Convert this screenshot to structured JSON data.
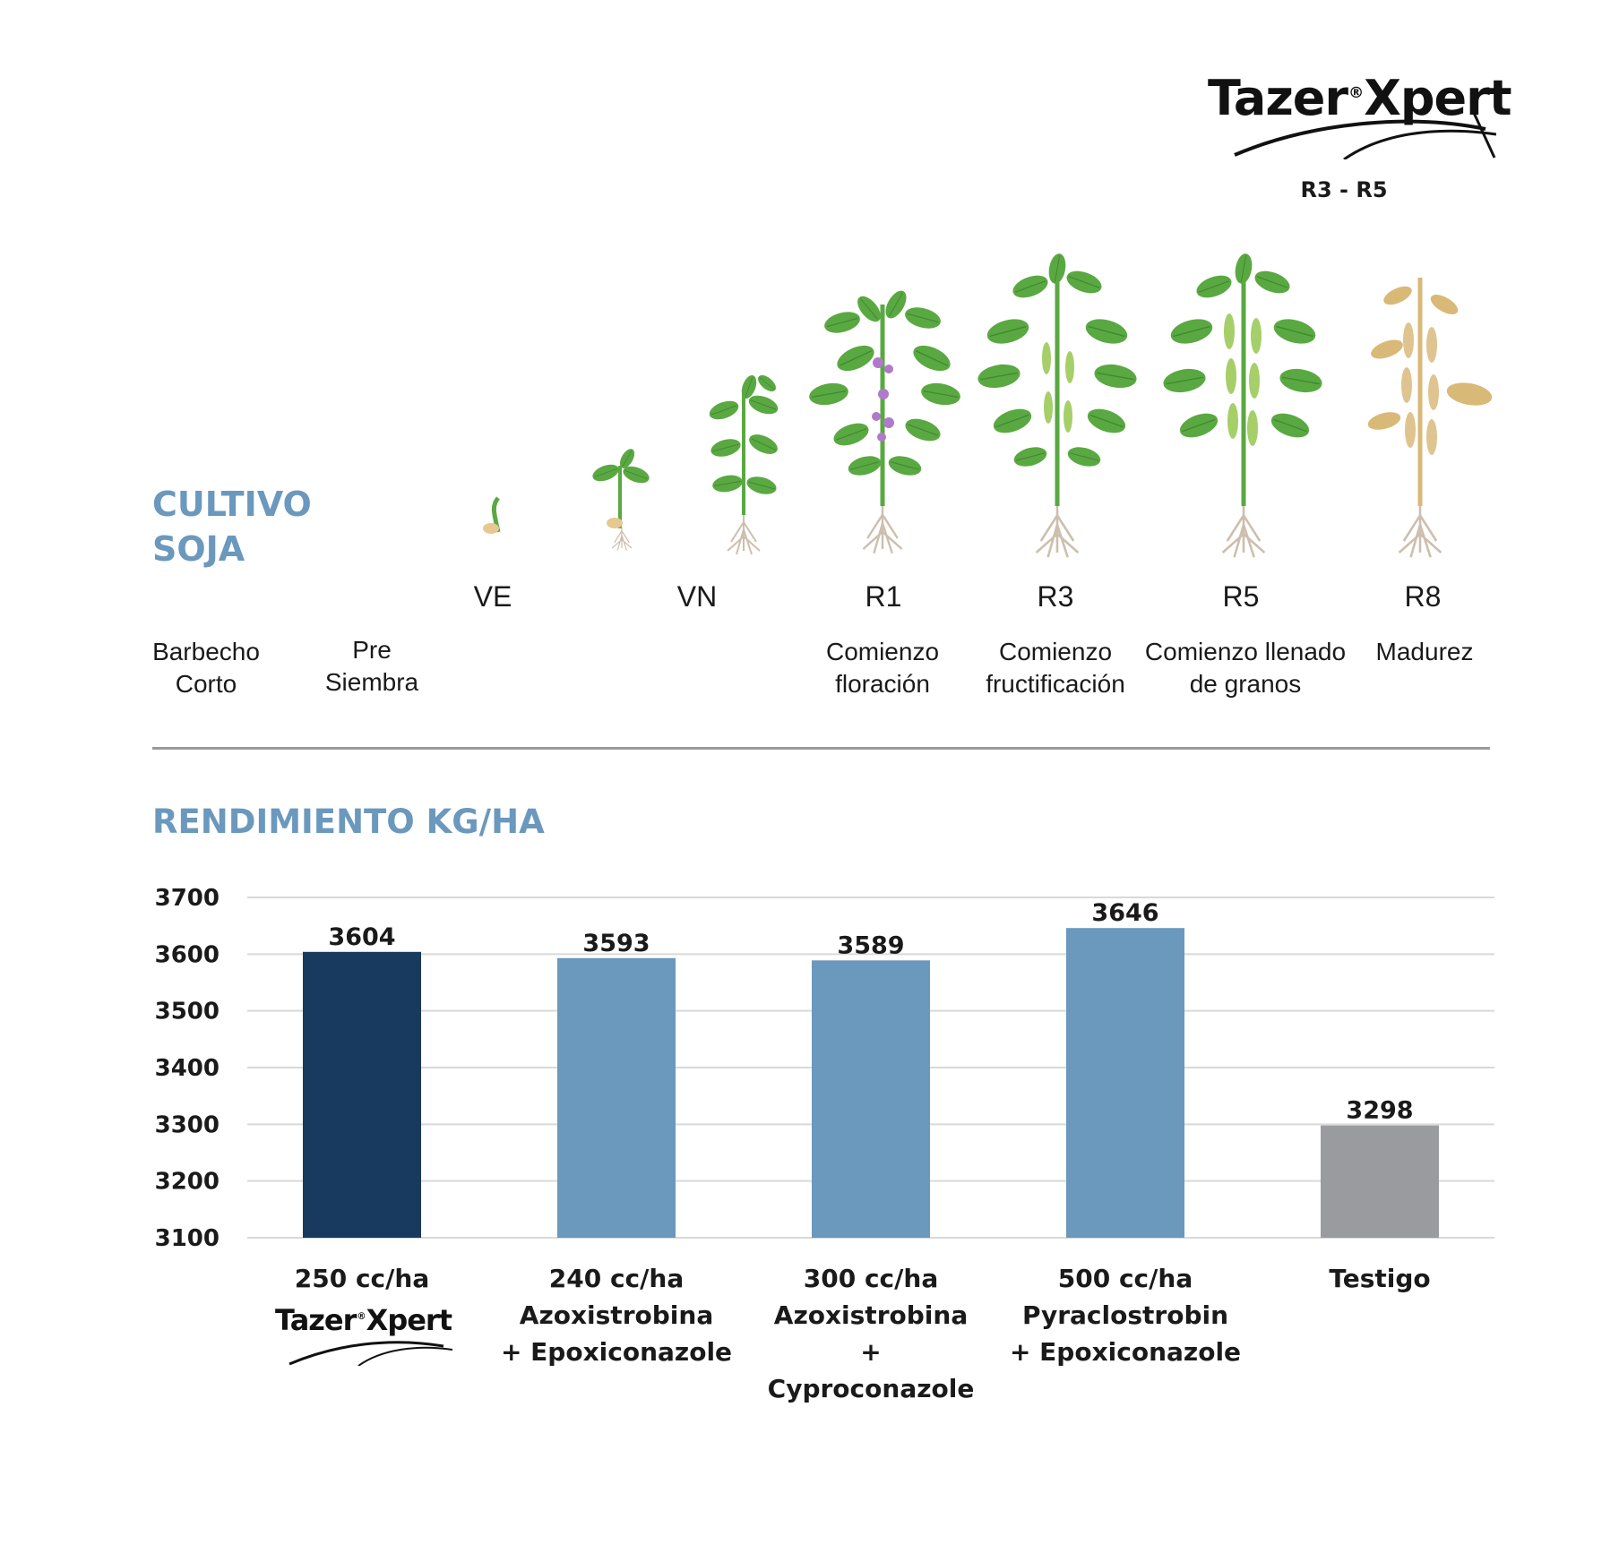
{
  "header": {
    "logo": {
      "name": "Tazer",
      "reg": "®",
      "suffix": "Xpert"
    },
    "application_window": "R3 - R5"
  },
  "crop": {
    "title_line1": "CULTIVO",
    "title_line2": "SOJA",
    "stages": [
      {
        "code": "",
        "desc": "Barbecho\nCorto"
      },
      {
        "code": "",
        "desc": "Pre\nSiembra"
      },
      {
        "code": "VE",
        "desc": ""
      },
      {
        "code": "",
        "desc": ""
      },
      {
        "code": "VN",
        "desc": ""
      },
      {
        "code": "R1",
        "desc": "Comienzo\nfloración"
      },
      {
        "code": "R3",
        "desc": "Comienzo\nfructificación"
      },
      {
        "code": "R5",
        "desc": "Comienzo llenado\nde granos"
      },
      {
        "code": "R8",
        "desc": "Madurez"
      }
    ]
  },
  "colors": {
    "heading": "#6b98bd",
    "tazer_bar": "#173a5e",
    "competitor_bar": "#6b98bd",
    "control_bar": "#9a9b9f",
    "plant_green": "#5aa842",
    "plant_mature": "#d9b978",
    "flower": "#b07acb",
    "root": "#cdbfae"
  },
  "chart_data": {
    "type": "bar",
    "title": "RENDIMIENTO KG/HA",
    "ylim": [
      3100,
      3700
    ],
    "yticks": [
      3700,
      3600,
      3500,
      3400,
      3300,
      3200,
      3100
    ],
    "grid": true,
    "categories": [
      {
        "lines": [
          "250 cc/ha"
        ],
        "logo": true
      },
      {
        "lines": [
          "240 cc/ha",
          "Azoxistrobina",
          "+ Epoxiconazole"
        ]
      },
      {
        "lines": [
          "300 cc/ha",
          "Azoxistrobina",
          "+ Cyproconazole"
        ]
      },
      {
        "lines": [
          "500 cc/ha",
          "Pyraclostrobin",
          "+ Epoxiconazole"
        ]
      },
      {
        "lines": [
          "Testigo"
        ]
      }
    ],
    "values": [
      3604,
      3593,
      3589,
      3646,
      3298
    ],
    "bar_colors": [
      "#173a5e",
      "#6b98bd",
      "#6b98bd",
      "#6b98bd",
      "#9a9b9f"
    ]
  }
}
